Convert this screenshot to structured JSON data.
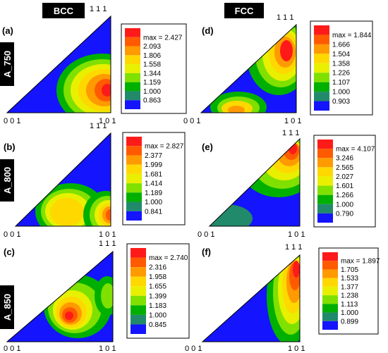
{
  "headers": {
    "left": "BCC",
    "right": "FCC"
  },
  "row_labels": [
    "A_750",
    "A_800",
    "A_850"
  ],
  "vertex_labels": {
    "top": "1 1 1",
    "left": "0 0 1",
    "right": "1 0 1"
  },
  "colors": [
    "#ff1a1a",
    "#ff5a00",
    "#ff9a00",
    "#ffd800",
    "#e8f000",
    "#80e000",
    "#00b000",
    "#218a6a",
    "#1414ff"
  ],
  "panels": [
    {
      "letter": "(a)",
      "phase": "BCC",
      "legend": [
        "max = 2.427",
        "2.093",
        "1.806",
        "1.558",
        "1.344",
        "1.159",
        "1.000",
        "0.863"
      ]
    },
    {
      "letter": "(d)",
      "phase": "FCC",
      "legend": [
        "max = 1.844",
        "1.666",
        "1.504",
        "1.358",
        "1.226",
        "1.107",
        "1.000",
        "0.903"
      ]
    },
    {
      "letter": "(b)",
      "phase": "BCC",
      "legend": [
        "max = 2.827",
        "2.377",
        "1.999",
        "1.681",
        "1.414",
        "1.189",
        "1.000",
        "0.841"
      ]
    },
    {
      "letter": "(e)",
      "phase": "FCC",
      "legend": [
        "max = 4.107",
        "3.246",
        "2.565",
        "2.027",
        "1.601",
        "1.266",
        "1.000",
        "0.790"
      ]
    },
    {
      "letter": "(c)",
      "phase": "BCC",
      "legend": [
        "max = 2.740",
        "2.316",
        "1.958",
        "1.655",
        "1.399",
        "1.183",
        "1.000",
        "0.845"
      ]
    },
    {
      "letter": "(f)",
      "phase": "FCC",
      "legend": [
        "max = 1.897",
        "1.705",
        "1.533",
        "1.377",
        "1.238",
        "1.113",
        "1.000",
        "0.899"
      ]
    }
  ]
}
